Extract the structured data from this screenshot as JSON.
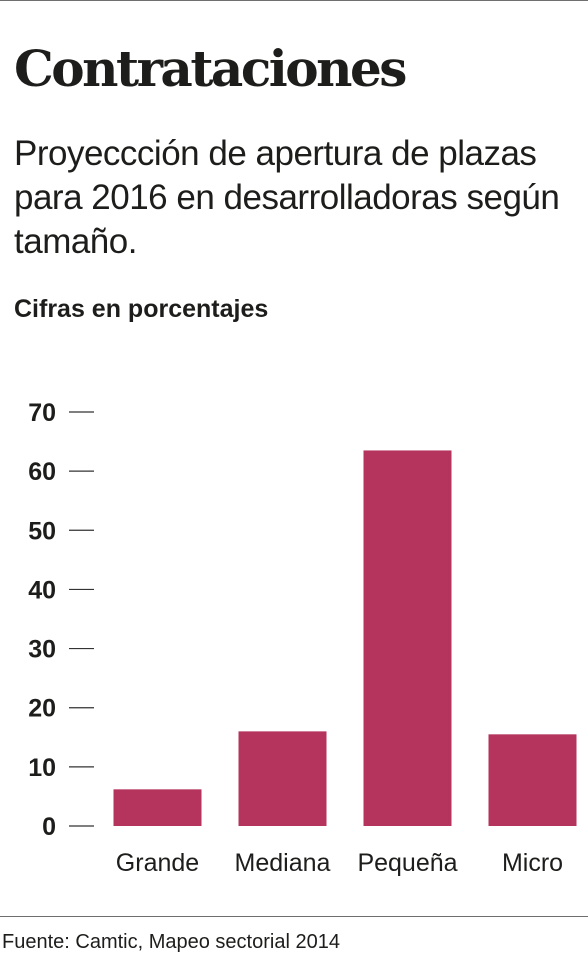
{
  "header": {
    "title": "Contrataciones",
    "subtitle": "Proyeccción de apertura de plazas para 2016 en desarrolladoras según tamaño.",
    "unit_label": "Cifras en porcentajes"
  },
  "footer": {
    "source": "Fuente: Camtic, Mapeo sectorial 2014"
  },
  "colors": {
    "bar": "#b5345e",
    "text": "#1d1d1b",
    "tick": "#333333"
  },
  "chart_data": {
    "type": "bar",
    "title": "Contrataciones",
    "subtitle": "Proyeccción de apertura de plazas para 2016 en desarrolladoras según tamaño.",
    "ylabel": "Cifras en porcentajes",
    "xlabel": "",
    "categories": [
      "Grande",
      "Mediana",
      "Pequeña",
      "Micro"
    ],
    "values": [
      6.2,
      16.0,
      63.5,
      15.5
    ],
    "ylim": [
      0,
      70
    ],
    "yticks": [
      0,
      10,
      20,
      30,
      40,
      50,
      60,
      70
    ],
    "grid": false,
    "legend": "none"
  }
}
